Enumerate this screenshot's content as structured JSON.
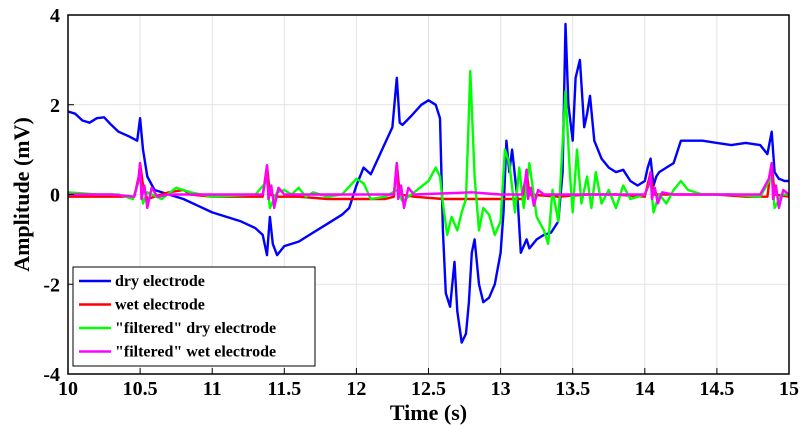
{
  "chart_data": {
    "type": "line",
    "xlabel": "Time (s)",
    "ylabel": "Amplitude (mV)",
    "xlim": [
      10,
      15
    ],
    "ylim": [
      -4,
      4
    ],
    "xticks": [
      "10",
      "10.5",
      "11",
      "11.5",
      "12",
      "12.5",
      "13",
      "13.5",
      "14",
      "14.5",
      "15"
    ],
    "yticks": [
      "-4",
      "-2",
      "0",
      "2",
      "4"
    ],
    "grid": true,
    "legend_position": "bottom-left",
    "series": [
      {
        "name": "dry electrode",
        "color": "#0000ff",
        "points": [
          [
            10.0,
            1.85
          ],
          [
            10.05,
            1.8
          ],
          [
            10.1,
            1.65
          ],
          [
            10.15,
            1.6
          ],
          [
            10.2,
            1.7
          ],
          [
            10.25,
            1.72
          ],
          [
            10.3,
            1.55
          ],
          [
            10.35,
            1.4
          ],
          [
            10.42,
            1.3
          ],
          [
            10.48,
            1.2
          ],
          [
            10.5,
            1.7
          ],
          [
            10.52,
            1.0
          ],
          [
            10.55,
            0.4
          ],
          [
            10.6,
            0.1
          ],
          [
            10.7,
            0.0
          ],
          [
            10.8,
            -0.1
          ],
          [
            10.9,
            -0.25
          ],
          [
            11.0,
            -0.4
          ],
          [
            11.1,
            -0.5
          ],
          [
            11.2,
            -0.6
          ],
          [
            11.3,
            -0.75
          ],
          [
            11.35,
            -0.9
          ],
          [
            11.38,
            -1.35
          ],
          [
            11.4,
            -0.5
          ],
          [
            11.42,
            -1.1
          ],
          [
            11.45,
            -1.35
          ],
          [
            11.5,
            -1.15
          ],
          [
            11.6,
            -1.05
          ],
          [
            11.7,
            -0.85
          ],
          [
            11.8,
            -0.65
          ],
          [
            11.9,
            -0.45
          ],
          [
            11.95,
            -0.3
          ],
          [
            12.0,
            0.2
          ],
          [
            12.05,
            0.6
          ],
          [
            12.1,
            0.45
          ],
          [
            12.15,
            0.8
          ],
          [
            12.2,
            1.15
          ],
          [
            12.25,
            1.5
          ],
          [
            12.28,
            2.6
          ],
          [
            12.3,
            1.6
          ],
          [
            12.32,
            1.55
          ],
          [
            12.38,
            1.75
          ],
          [
            12.45,
            2.0
          ],
          [
            12.5,
            2.1
          ],
          [
            12.55,
            2.0
          ],
          [
            12.58,
            1.7
          ],
          [
            12.6,
            -0.8
          ],
          [
            12.62,
            -2.2
          ],
          [
            12.65,
            -2.5
          ],
          [
            12.68,
            -1.5
          ],
          [
            12.7,
            -2.6
          ],
          [
            12.73,
            -3.3
          ],
          [
            12.76,
            -3.1
          ],
          [
            12.78,
            -2.4
          ],
          [
            12.8,
            -1.3
          ],
          [
            12.82,
            -1.0
          ],
          [
            12.85,
            -2.0
          ],
          [
            12.88,
            -2.4
          ],
          [
            12.92,
            -2.3
          ],
          [
            12.96,
            -2.0
          ],
          [
            13.0,
            -1.3
          ],
          [
            13.02,
            -0.4
          ],
          [
            13.04,
            1.2
          ],
          [
            13.06,
            0.5
          ],
          [
            13.08,
            1.0
          ],
          [
            13.1,
            0.4
          ],
          [
            13.12,
            -0.2
          ],
          [
            13.14,
            -1.3
          ],
          [
            13.18,
            -1.0
          ],
          [
            13.2,
            -1.2
          ],
          [
            13.25,
            -1.0
          ],
          [
            13.3,
            -0.9
          ],
          [
            13.35,
            -0.85
          ],
          [
            13.4,
            -0.6
          ],
          [
            13.43,
            0.5
          ],
          [
            13.45,
            3.8
          ],
          [
            13.47,
            2.0
          ],
          [
            13.5,
            1.2
          ],
          [
            13.52,
            2.6
          ],
          [
            13.55,
            3.0
          ],
          [
            13.58,
            1.5
          ],
          [
            13.6,
            1.8
          ],
          [
            13.62,
            2.2
          ],
          [
            13.65,
            1.2
          ],
          [
            13.7,
            0.8
          ],
          [
            13.75,
            0.6
          ],
          [
            13.8,
            0.5
          ],
          [
            13.85,
            0.55
          ],
          [
            13.9,
            0.3
          ],
          [
            13.95,
            0.2
          ],
          [
            14.0,
            0.3
          ],
          [
            14.02,
            0.6
          ],
          [
            14.04,
            0.8
          ],
          [
            14.06,
            0.2
          ],
          [
            14.08,
            0.4
          ],
          [
            14.1,
            0.5
          ],
          [
            14.15,
            0.6
          ],
          [
            14.2,
            0.7
          ],
          [
            14.25,
            1.2
          ],
          [
            14.3,
            1.2
          ],
          [
            14.4,
            1.2
          ],
          [
            14.5,
            1.15
          ],
          [
            14.6,
            1.1
          ],
          [
            14.7,
            1.15
          ],
          [
            14.8,
            1.1
          ],
          [
            14.85,
            0.9
          ],
          [
            14.88,
            1.4
          ],
          [
            14.9,
            0.5
          ],
          [
            14.93,
            0.35
          ],
          [
            14.97,
            0.3
          ],
          [
            15.0,
            0.3
          ]
        ]
      },
      {
        "name": "wet electrode",
        "color": "#ff0000",
        "points": [
          [
            10.0,
            -0.05
          ],
          [
            10.3,
            -0.05
          ],
          [
            10.46,
            -0.05
          ],
          [
            10.49,
            0.4
          ],
          [
            10.5,
            0.7
          ],
          [
            10.52,
            0.2
          ],
          [
            10.55,
            -0.1
          ],
          [
            10.6,
            -0.05
          ],
          [
            10.7,
            0.05
          ],
          [
            10.8,
            0.1
          ],
          [
            10.85,
            0.0
          ],
          [
            11.0,
            -0.05
          ],
          [
            11.35,
            -0.05
          ],
          [
            11.38,
            0.65
          ],
          [
            11.4,
            0.0
          ],
          [
            11.45,
            -0.05
          ],
          [
            11.6,
            -0.05
          ],
          [
            11.8,
            -0.1
          ],
          [
            12.0,
            -0.1
          ],
          [
            12.2,
            -0.1
          ],
          [
            12.26,
            -0.05
          ],
          [
            12.28,
            0.7
          ],
          [
            12.3,
            0.0
          ],
          [
            12.4,
            -0.05
          ],
          [
            12.6,
            -0.1
          ],
          [
            12.8,
            -0.1
          ],
          [
            13.0,
            -0.1
          ],
          [
            13.16,
            -0.1
          ],
          [
            13.18,
            0.55
          ],
          [
            13.2,
            0.0
          ],
          [
            13.4,
            -0.05
          ],
          [
            13.6,
            0.0
          ],
          [
            13.8,
            0.0
          ],
          [
            14.0,
            -0.05
          ],
          [
            14.04,
            0.5
          ],
          [
            14.06,
            0.0
          ],
          [
            14.2,
            0.0
          ],
          [
            14.5,
            0.0
          ],
          [
            14.7,
            -0.05
          ],
          [
            14.85,
            -0.05
          ],
          [
            14.88,
            0.7
          ],
          [
            14.9,
            0.0
          ],
          [
            15.0,
            -0.05
          ]
        ]
      },
      {
        "name": "\"filtered\" dry electrode",
        "color": "#00ff00",
        "points": [
          [
            10.0,
            0.05
          ],
          [
            10.2,
            0.0
          ],
          [
            10.35,
            0.0
          ],
          [
            10.45,
            -0.1
          ],
          [
            10.5,
            0.4
          ],
          [
            10.52,
            -0.2
          ],
          [
            10.55,
            0.05
          ],
          [
            10.65,
            -0.1
          ],
          [
            10.75,
            0.15
          ],
          [
            10.85,
            0.05
          ],
          [
            11.0,
            -0.05
          ],
          [
            11.3,
            0.0
          ],
          [
            11.38,
            0.3
          ],
          [
            11.4,
            -0.3
          ],
          [
            11.45,
            0.05
          ],
          [
            11.5,
            0.1
          ],
          [
            11.55,
            0.0
          ],
          [
            11.6,
            0.15
          ],
          [
            11.65,
            -0.05
          ],
          [
            11.7,
            0.05
          ],
          [
            11.8,
            -0.05
          ],
          [
            11.9,
            0.0
          ],
          [
            12.0,
            0.35
          ],
          [
            12.05,
            0.25
          ],
          [
            12.1,
            -0.1
          ],
          [
            12.2,
            -0.05
          ],
          [
            12.28,
            0.1
          ],
          [
            12.32,
            -0.15
          ],
          [
            12.4,
            0.05
          ],
          [
            12.5,
            0.3
          ],
          [
            12.55,
            0.6
          ],
          [
            12.58,
            0.4
          ],
          [
            12.6,
            -0.2
          ],
          [
            12.63,
            -0.9
          ],
          [
            12.66,
            -0.5
          ],
          [
            12.7,
            -0.8
          ],
          [
            12.73,
            -0.4
          ],
          [
            12.76,
            -0.1
          ],
          [
            12.79,
            2.75
          ],
          [
            12.82,
            0.4
          ],
          [
            12.85,
            -0.8
          ],
          [
            12.88,
            -0.3
          ],
          [
            12.92,
            -0.45
          ],
          [
            12.96,
            -0.9
          ],
          [
            13.0,
            -0.6
          ],
          [
            13.03,
            1.0
          ],
          [
            13.06,
            0.7
          ],
          [
            13.1,
            -0.4
          ],
          [
            13.13,
            0.6
          ],
          [
            13.16,
            -0.3
          ],
          [
            13.2,
            0.7
          ],
          [
            13.25,
            -0.5
          ],
          [
            13.3,
            -0.8
          ],
          [
            13.33,
            -1.1
          ],
          [
            13.36,
            0.1
          ],
          [
            13.4,
            -0.6
          ],
          [
            13.45,
            2.3
          ],
          [
            13.48,
            0.5
          ],
          [
            13.5,
            -0.4
          ],
          [
            13.53,
            1.0
          ],
          [
            13.56,
            -0.2
          ],
          [
            13.6,
            0.4
          ],
          [
            13.63,
            -0.3
          ],
          [
            13.66,
            0.5
          ],
          [
            13.7,
            -0.2
          ],
          [
            13.75,
            0.1
          ],
          [
            13.8,
            -0.3
          ],
          [
            13.85,
            0.2
          ],
          [
            13.9,
            -0.1
          ],
          [
            14.0,
            0.0
          ],
          [
            14.04,
            0.3
          ],
          [
            14.06,
            -0.4
          ],
          [
            14.1,
            0.0
          ],
          [
            14.15,
            -0.2
          ],
          [
            14.2,
            0.1
          ],
          [
            14.25,
            0.3
          ],
          [
            14.3,
            0.1
          ],
          [
            14.4,
            0.0
          ],
          [
            14.6,
            0.0
          ],
          [
            14.8,
            -0.05
          ],
          [
            14.88,
            0.4
          ],
          [
            14.9,
            -0.3
          ],
          [
            14.95,
            0.0
          ],
          [
            15.0,
            0.0
          ]
        ]
      },
      {
        "name": "\"filtered\" wet electrode",
        "color": "#ff00ff",
        "points": [
          [
            10.0,
            0.0
          ],
          [
            10.3,
            0.0
          ],
          [
            10.46,
            -0.05
          ],
          [
            10.49,
            0.35
          ],
          [
            10.5,
            0.7
          ],
          [
            10.51,
            -0.1
          ],
          [
            10.53,
            0.2
          ],
          [
            10.55,
            -0.3
          ],
          [
            10.58,
            0.15
          ],
          [
            10.62,
            -0.05
          ],
          [
            10.7,
            0.0
          ],
          [
            11.0,
            0.0
          ],
          [
            11.35,
            0.0
          ],
          [
            11.37,
            0.35
          ],
          [
            11.38,
            0.65
          ],
          [
            11.39,
            -0.1
          ],
          [
            11.41,
            0.2
          ],
          [
            11.43,
            -0.3
          ],
          [
            11.46,
            0.15
          ],
          [
            11.5,
            0.0
          ],
          [
            11.9,
            0.0
          ],
          [
            12.26,
            0.0
          ],
          [
            12.27,
            0.35
          ],
          [
            12.28,
            0.7
          ],
          [
            12.29,
            -0.1
          ],
          [
            12.31,
            0.2
          ],
          [
            12.33,
            -0.3
          ],
          [
            12.36,
            0.15
          ],
          [
            12.4,
            0.0
          ],
          [
            12.8,
            0.05
          ],
          [
            13.0,
            0.0
          ],
          [
            13.15,
            0.0
          ],
          [
            13.17,
            0.3
          ],
          [
            13.18,
            0.55
          ],
          [
            13.19,
            -0.1
          ],
          [
            13.21,
            0.15
          ],
          [
            13.23,
            -0.25
          ],
          [
            13.26,
            0.1
          ],
          [
            13.3,
            0.0
          ],
          [
            13.6,
            0.0
          ],
          [
            14.0,
            0.0
          ],
          [
            14.03,
            0.25
          ],
          [
            14.04,
            0.5
          ],
          [
            14.05,
            -0.1
          ],
          [
            14.07,
            0.15
          ],
          [
            14.09,
            -0.2
          ],
          [
            14.12,
            0.05
          ],
          [
            14.2,
            0.0
          ],
          [
            14.8,
            0.0
          ],
          [
            14.86,
            0.35
          ],
          [
            14.88,
            0.7
          ],
          [
            14.89,
            -0.1
          ],
          [
            14.91,
            0.2
          ],
          [
            14.93,
            -0.3
          ],
          [
            14.96,
            0.1
          ],
          [
            15.0,
            0.0
          ]
        ]
      }
    ]
  }
}
